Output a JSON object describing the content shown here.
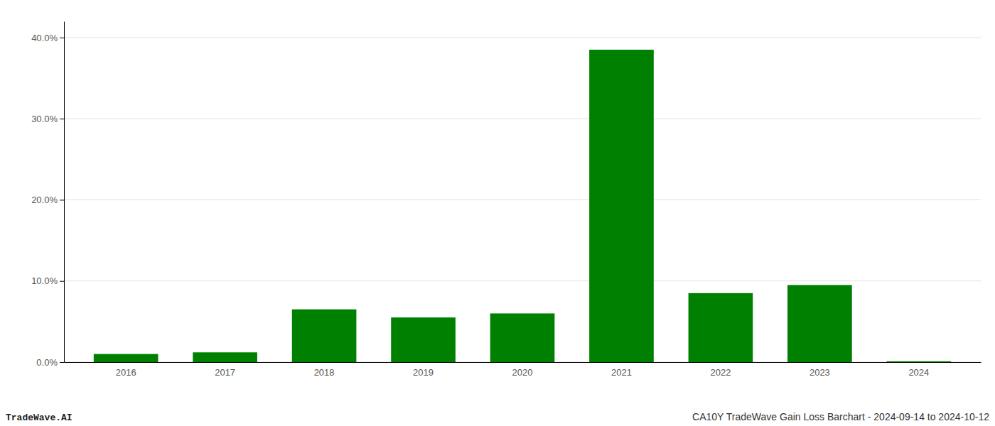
{
  "chart_data": {
    "type": "bar",
    "title": "CA10Y TradeWave Gain Loss Barchart - 2024-09-14 to 2024-10-12",
    "annotations": [
      "TradeWave.AI"
    ],
    "categories": [
      "2016",
      "2017",
      "2018",
      "2019",
      "2020",
      "2021",
      "2022",
      "2023",
      "2024"
    ],
    "values": [
      0.01,
      0.012,
      0.065,
      0.055,
      0.06,
      0.385,
      0.085,
      0.095,
      0.001
    ],
    "color": "#008000",
    "ylim": [
      0,
      0.42
    ],
    "yticks": [
      {
        "value": 0.0,
        "label": "0.0%"
      },
      {
        "value": 0.1,
        "label": "10.0%"
      },
      {
        "value": 0.2,
        "label": "20.0%"
      },
      {
        "value": 0.3,
        "label": "30.0%"
      },
      {
        "value": 0.4,
        "label": "40.0%"
      }
    ],
    "grid": true
  }
}
